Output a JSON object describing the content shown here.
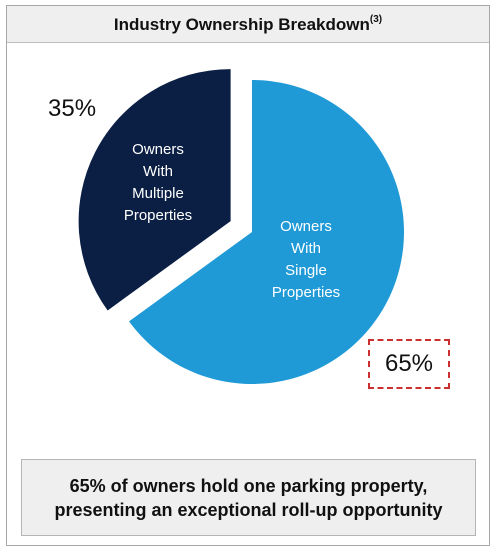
{
  "header": {
    "title": "Industry Ownership Breakdown",
    "footnote_marker": "(3)"
  },
  "chart_data": {
    "type": "pie",
    "slices": [
      {
        "label_lines": [
          "Owners",
          "With",
          "Multiple",
          "Properties"
        ],
        "value": 35,
        "value_label": "35%",
        "color": "#0b1f44",
        "exploded": true
      },
      {
        "label_lines": [
          "Owners",
          "With",
          "Single",
          "Properties"
        ],
        "value": 65,
        "value_label": "65%",
        "color": "#1f9ad6",
        "exploded": false
      }
    ],
    "highlight": {
      "slice": "65%",
      "style": "dashed box",
      "color": "#cc2f2f"
    }
  },
  "callout": {
    "line1": "65% of owners hold one parking property,",
    "line2": "presenting an exceptional roll-up opportunity"
  }
}
